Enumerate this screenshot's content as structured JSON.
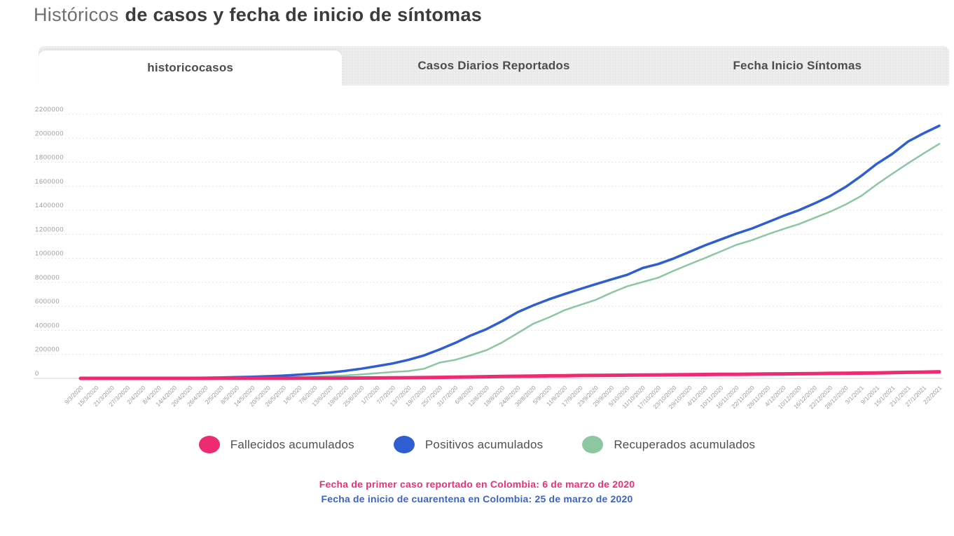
{
  "title": {
    "light": "Históricos",
    "bold": "de casos y fecha de inicio de síntomas"
  },
  "tabs": [
    {
      "label": "historicocasos",
      "active": true
    },
    {
      "label": "Casos Diarios Reportados",
      "active": false
    },
    {
      "label": "Fecha Inicio Síntomas",
      "active": false
    }
  ],
  "colors": {
    "footer_line1": "#ef2f77",
    "footer_line2": "#3e63c4",
    "grid_line": "#e4e4e4",
    "zero_line": "#d6d6d6",
    "axis_label": "#9b9b9b",
    "tabbar_background": "#e9e9e9",
    "tab_text": "#4c4c4c",
    "title_light": "#6f6f6f",
    "title_bold": "#3b3b3b",
    "legend_text": "#4f4f4f"
  },
  "chart_data": {
    "type": "line",
    "title": "",
    "xlabel": "",
    "ylabel": "",
    "ylim": [
      0,
      2200000
    ],
    "ytick_step": 200000,
    "grid": true,
    "legend_position": "bottom",
    "categories": [
      "9/3/2020",
      "15/3/2020",
      "21/3/2020",
      "27/3/2020",
      "2/4/2020",
      "8/4/2020",
      "14/4/2020",
      "20/4/2020",
      "26/4/2020",
      "2/5/2020",
      "8/5/2020",
      "14/5/2020",
      "20/5/2020",
      "26/5/2020",
      "1/6/2020",
      "7/6/2020",
      "13/6/2020",
      "19/6/2020",
      "25/6/2020",
      "1/7/2020",
      "7/7/2020",
      "13/7/2020",
      "19/7/2020",
      "25/7/2020",
      "31/7/2020",
      "6/8/2020",
      "12/8/2020",
      "18/8/2020",
      "24/8/2020",
      "30/8/2020",
      "5/9/2020",
      "11/9/2020",
      "17/9/2020",
      "23/9/2020",
      "29/9/2020",
      "5/10/2020",
      "11/10/2020",
      "17/10/2020",
      "23/10/2020",
      "29/10/2020",
      "4/11/2020",
      "10/11/2020",
      "16/11/2020",
      "22/11/2020",
      "28/11/2020",
      "4/12/2020",
      "10/12/2020",
      "16/12/2020",
      "22/12/2020",
      "28/12/2020",
      "3/1/2021",
      "9/1/2021",
      "15/1/2021",
      "21/1/2021",
      "27/1/2021",
      "2/2/2021"
    ],
    "series": [
      {
        "name": "Fallecidos acumulados",
        "color": "#ee2a70",
        "values": [
          0,
          1,
          2,
          6,
          25,
          55,
          127,
          189,
          244,
          324,
          428,
          525,
          630,
          776,
          969,
          1259,
          1592,
          2045,
          2654,
          3470,
          4359,
          5455,
          6516,
          8269,
          10105,
          11939,
          13837,
          15619,
          17612,
          19364,
          21156,
          22275,
          23665,
          24746,
          25828,
          26844,
          27985,
          28803,
          29802,
          31135,
          31847,
          33148,
          34031,
          35287,
          36401,
          37633,
          38669,
          39787,
          41174,
          42620,
          43965,
          45784,
          47868,
          50187,
          52128,
          55131
        ]
      },
      {
        "name": "Positivos acumulados",
        "color": "#2e5ed1",
        "values": [
          3,
          45,
          231,
          539,
          1267,
          2054,
          2979,
          3977,
          5379,
          7285,
          10051,
          13610,
          17687,
          23003,
          30493,
          39236,
          48746,
          63276,
          80599,
          102009,
          124494,
          154277,
          190700,
          240795,
          295508,
          357710,
          410453,
          476660,
          551688,
          607938,
          658456,
          702088,
          743945,
          784268,
          824042,
          862158,
          919083,
          952371,
          998942,
          1053122,
          1108086,
          1156675,
          1205217,
          1248417,
          1299613,
          1352607,
          1399911,
          1456599,
          1518067,
          1594497,
          1686131,
          1786900,
          1870179,
          1972345,
          2041352,
          2103910
        ]
      },
      {
        "name": "Recuperados acumulados",
        "color": "#8cc7a2",
        "values": [
          0,
          1,
          3,
          10,
          55,
          100,
          319,
          711,
          1133,
          1722,
          2424,
          3358,
          4256,
          5511,
          9661,
          14460,
          19126,
          23734,
          32829,
          43407,
          53338,
          60875,
          79735,
          131161,
          153995,
          192355,
          235037,
          299385,
          377033,
          455230,
          507770,
          567761,
          611545,
          653990,
          713086,
          766300,
          802110,
          838695,
          896120,
          950850,
          1002342,
          1056745,
          1111790,
          1150823,
          1199229,
          1243640,
          1284212,
          1335826,
          1387729,
          1447926,
          1519127,
          1615731,
          1704343,
          1791000,
          1874012,
          1953406
        ]
      }
    ]
  },
  "footer": {
    "line1": "Fecha de primer caso reportado en Colombia: 6 de marzo de 2020",
    "line2": "Fecha de inicio de cuarentena en Colombia: 25 de marzo de 2020"
  }
}
